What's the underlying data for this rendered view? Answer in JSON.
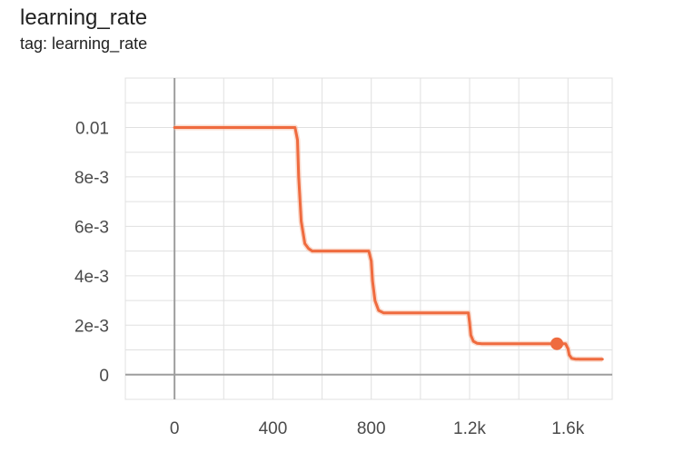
{
  "card": {
    "title": "learning_rate",
    "tag": "tag: learning_rate"
  },
  "colors": {
    "series": "#ef6b3f",
    "series_shadow": "#f6c3ae",
    "grid": "#e0e0e0",
    "axis": "#9e9e9e"
  },
  "chart_data": {
    "type": "line",
    "title": "learning_rate",
    "xlabel": "",
    "ylabel": "",
    "xlim": [
      -200,
      1780
    ],
    "ylim": [
      -0.001,
      0.012
    ],
    "grid": true,
    "x_ticks": [
      {
        "value": 0,
        "label": "0"
      },
      {
        "value": 400,
        "label": "400"
      },
      {
        "value": 800,
        "label": "800"
      },
      {
        "value": 1200,
        "label": "1.2k"
      },
      {
        "value": 1600,
        "label": "1.6k"
      }
    ],
    "y_ticks": [
      {
        "value": 0,
        "label": "0"
      },
      {
        "value": 0.002,
        "label": "2e-3"
      },
      {
        "value": 0.004,
        "label": "4e-3"
      },
      {
        "value": 0.006,
        "label": "6e-3"
      },
      {
        "value": 0.008,
        "label": "8e-3"
      },
      {
        "value": 0.01,
        "label": "0.01"
      }
    ],
    "series": [
      {
        "x": [
          0,
          490,
          500,
          505,
          515,
          530,
          545,
          560,
          790,
          800,
          805,
          815,
          830,
          850,
          1195,
          1200,
          1205,
          1215,
          1230,
          1250,
          1590,
          1600,
          1605,
          1615,
          1630,
          1650,
          1740
        ],
        "y": [
          0.01,
          0.01,
          0.0095,
          0.008,
          0.0062,
          0.0053,
          0.0051,
          0.005,
          0.005,
          0.0046,
          0.0038,
          0.003,
          0.0026,
          0.0025,
          0.0025,
          0.0021,
          0.0016,
          0.00135,
          0.00127,
          0.00125,
          0.00125,
          0.00105,
          0.0008,
          0.00066,
          0.00063,
          0.000625,
          0.000625
        ]
      }
    ],
    "highlight_point": {
      "x": 1555,
      "y": 0.00125
    }
  }
}
